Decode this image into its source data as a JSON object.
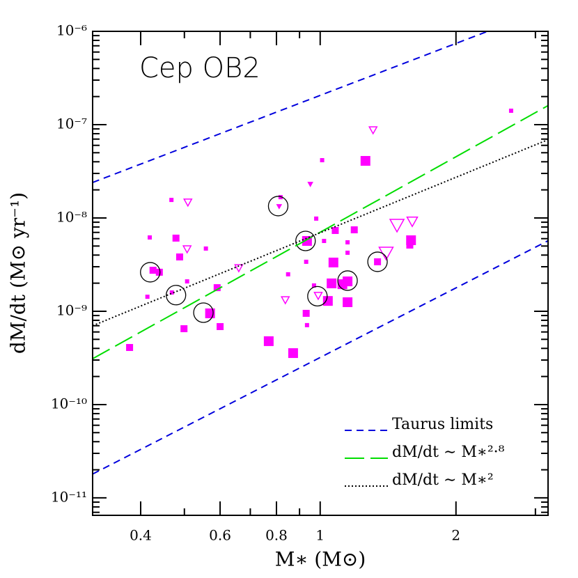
{
  "chart_data": {
    "type": "scatter",
    "annotation": "Cep OB2",
    "xlabel": "M∗ (M⊙)",
    "ylabel": "dM/dt (M⊙ yr⁻¹)",
    "xscale": "log",
    "yscale": "log",
    "xlim": [
      0.313,
      3.2
    ],
    "ylim": [
      6.5e-12,
      1e-06
    ],
    "xticks": [
      0.4,
      0.6,
      0.8,
      1,
      2
    ],
    "xminorticks": [
      0.5,
      0.7,
      0.9,
      3
    ],
    "yticks": [
      {
        "value": 1e-11,
        "label": "10⁻¹¹"
      },
      {
        "value": 1e-10,
        "label": "10⁻¹⁰"
      },
      {
        "value": 1e-09,
        "label": "10⁻⁹"
      },
      {
        "value": 1e-08,
        "label": "10⁻⁸"
      },
      {
        "value": 1e-07,
        "label": "10⁻⁷"
      },
      {
        "value": 1e-06,
        "label": "10⁻⁶"
      }
    ],
    "yminorticks": [
      7e-12,
      8e-12,
      9e-12,
      2e-11,
      3e-11,
      4e-11,
      5e-11,
      6e-11,
      7e-11,
      8e-11,
      9e-11,
      2e-10,
      3e-10,
      4e-10,
      5e-10,
      6e-10,
      7e-10,
      8e-10,
      9e-10,
      2e-09,
      3e-09,
      4e-09,
      5e-09,
      6e-09,
      7e-09,
      8e-09,
      9e-09,
      2e-08,
      3e-08,
      4e-08,
      5e-08,
      6e-08,
      7e-08,
      8e-08,
      9e-08,
      2e-07,
      3e-07,
      4e-07,
      5e-07,
      6e-07,
      7e-07,
      8e-07,
      9e-07
    ],
    "legend": "lower right",
    "series": [
      {
        "marker": "square",
        "filled": true,
        "color": "#ff00ff",
        "x": [
          0.378,
          0.419,
          0.426,
          0.44,
          0.479,
          0.488,
          0.507,
          0.469,
          0.558,
          0.591,
          0.499,
          0.57,
          0.6,
          0.769,
          0.871,
          0.817,
          1.01,
          0.98,
          1.02,
          0.935,
          0.931,
          0.849,
          0.969,
          1.08,
          1.07,
          1.06,
          1.12,
          1.04,
          1.15,
          0.931,
          0.935,
          1.15,
          1.19,
          1.15,
          1.15,
          1.26,
          1.34,
          1.59,
          1.58,
          2.65,
          0.468,
          0.414
        ],
        "values": [
          4.09e-10,
          6.18e-09,
          2.75e-09,
          2.62e-09,
          6.08e-09,
          3.82e-09,
          2.09e-09,
          1.59e-09,
          4.7e-09,
          1.79e-09,
          6.5e-10,
          9.5e-10,
          6.85e-10,
          4.78e-10,
          3.56e-10,
          1.67e-08,
          4.16e-08,
          9.84e-09,
          5.67e-09,
          5.67e-09,
          3.39e-09,
          2.49e-09,
          1.89e-09,
          7.34e-09,
          3.33e-09,
          1.99e-09,
          1.95e-09,
          1.29e-09,
          2.09e-09,
          9.5e-10,
          7.1e-10,
          1.25e-09,
          7.46e-09,
          5.48e-09,
          4.24e-09,
          4.09e-08,
          3.39e-09,
          5.77e-09,
          5.12e-09,
          1.41e-07,
          1.56e-08,
          1.43e-09
        ],
        "sizes": [
          2,
          1,
          2,
          2,
          2,
          2,
          1,
          1,
          1,
          2,
          2,
          3,
          2,
          3,
          3,
          1,
          1,
          1,
          1,
          3,
          1,
          1,
          1,
          2,
          3,
          3,
          3,
          3,
          3,
          2,
          1,
          3,
          2,
          1,
          1,
          3,
          2,
          3,
          2,
          1,
          1,
          1
        ]
      },
      {
        "marker": "triangle",
        "filled": false,
        "color": "#ff00ff",
        "x": [
          0.509,
          0.507,
          0.66,
          0.837,
          1.31,
          1.48,
          1.4,
          1.6,
          0.99
        ],
        "values": [
          1.49e-08,
          4.7e-09,
          2.95e-09,
          1.34e-09,
          8.87e-08,
          8.57e-09,
          4.31e-09,
          9.33e-09,
          1.49e-09
        ],
        "sizes": [
          2,
          2,
          2,
          2,
          2,
          4,
          4,
          3,
          2
        ]
      },
      {
        "marker": "triangle",
        "filled": true,
        "color": "#ff00ff",
        "x": [
          0.951,
          0.811
        ],
        "values": [
          2.32e-08,
          1.34e-08
        ],
        "sizes": [
          1,
          1
        ]
      },
      {
        "marker": "circle",
        "filled": false,
        "color": "#000000",
        "x": [
          0.42,
          0.479,
          0.551,
          0.807,
          0.928,
          0.986,
          1.15,
          1.34
        ],
        "values": [
          2.62e-09,
          1.49e-09,
          9.66e-10,
          1.34e-08,
          5.67e-09,
          1.45e-09,
          2.13e-09,
          3.39e-09
        ],
        "sizes": [
          2,
          2,
          2,
          2,
          2,
          2,
          2,
          2
        ]
      },
      {
        "marker": "line",
        "name": "Taurus limits",
        "style": "dashed",
        "color": "#0000dd",
        "x": [
          0.313,
          2.35
        ],
        "values": [
          2.4e-08,
          1e-06
        ]
      },
      {
        "marker": "line",
        "style": "dashed",
        "color": "#0000dd",
        "x": [
          0.313,
          3.2
        ],
        "values": [
          1.8e-11,
          5.7e-09
        ]
      },
      {
        "marker": "line",
        "name": "dM/dt ∼ M∗²·⁸",
        "style": "longdash",
        "color": "#00dd00",
        "x": [
          0.313,
          3.2
        ],
        "values": [
          3.1e-10,
          1.6e-07
        ]
      },
      {
        "marker": "line",
        "name": "dM/dt ∼ M∗²",
        "style": "dotted",
        "color": "#000000",
        "x": [
          0.313,
          3.2
        ],
        "values": [
          7e-10,
          6.9e-08
        ]
      }
    ]
  }
}
